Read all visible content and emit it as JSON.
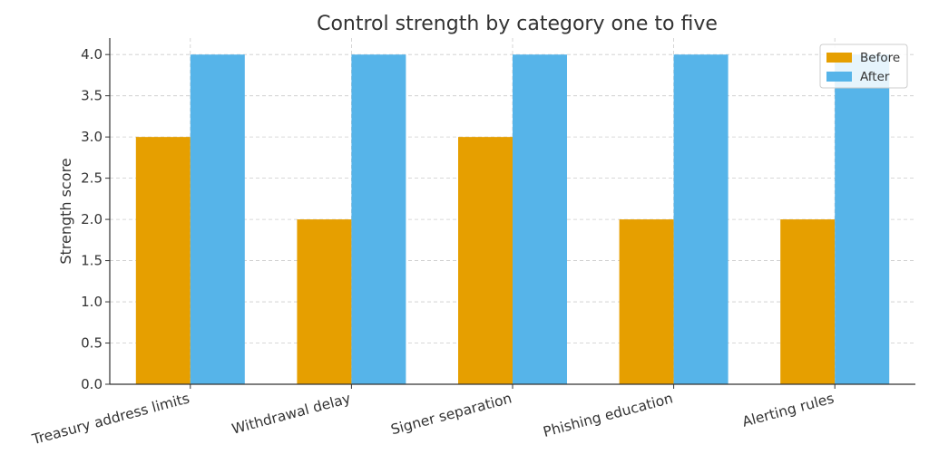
{
  "chart_data": {
    "type": "bar",
    "title": "Control strength by category one to five",
    "xlabel": "",
    "ylabel": "Strength score",
    "categories": [
      "Treasury address limits",
      "Withdrawal delay",
      "Signer separation",
      "Phishing education",
      "Alerting rules"
    ],
    "series": [
      {
        "name": "Before",
        "color": "#E69F00",
        "values": [
          3,
          2,
          3,
          2,
          2
        ]
      },
      {
        "name": "After",
        "color": "#56B4E9",
        "values": [
          4,
          4,
          4,
          4,
          4
        ]
      }
    ],
    "ylim": [
      0,
      4.2
    ],
    "yticks": [
      "0.0",
      "0.5",
      "1.0",
      "1.5",
      "2.0",
      "2.5",
      "3.0",
      "3.5",
      "4.0"
    ],
    "grid": true,
    "legend_position": "top-right"
  }
}
